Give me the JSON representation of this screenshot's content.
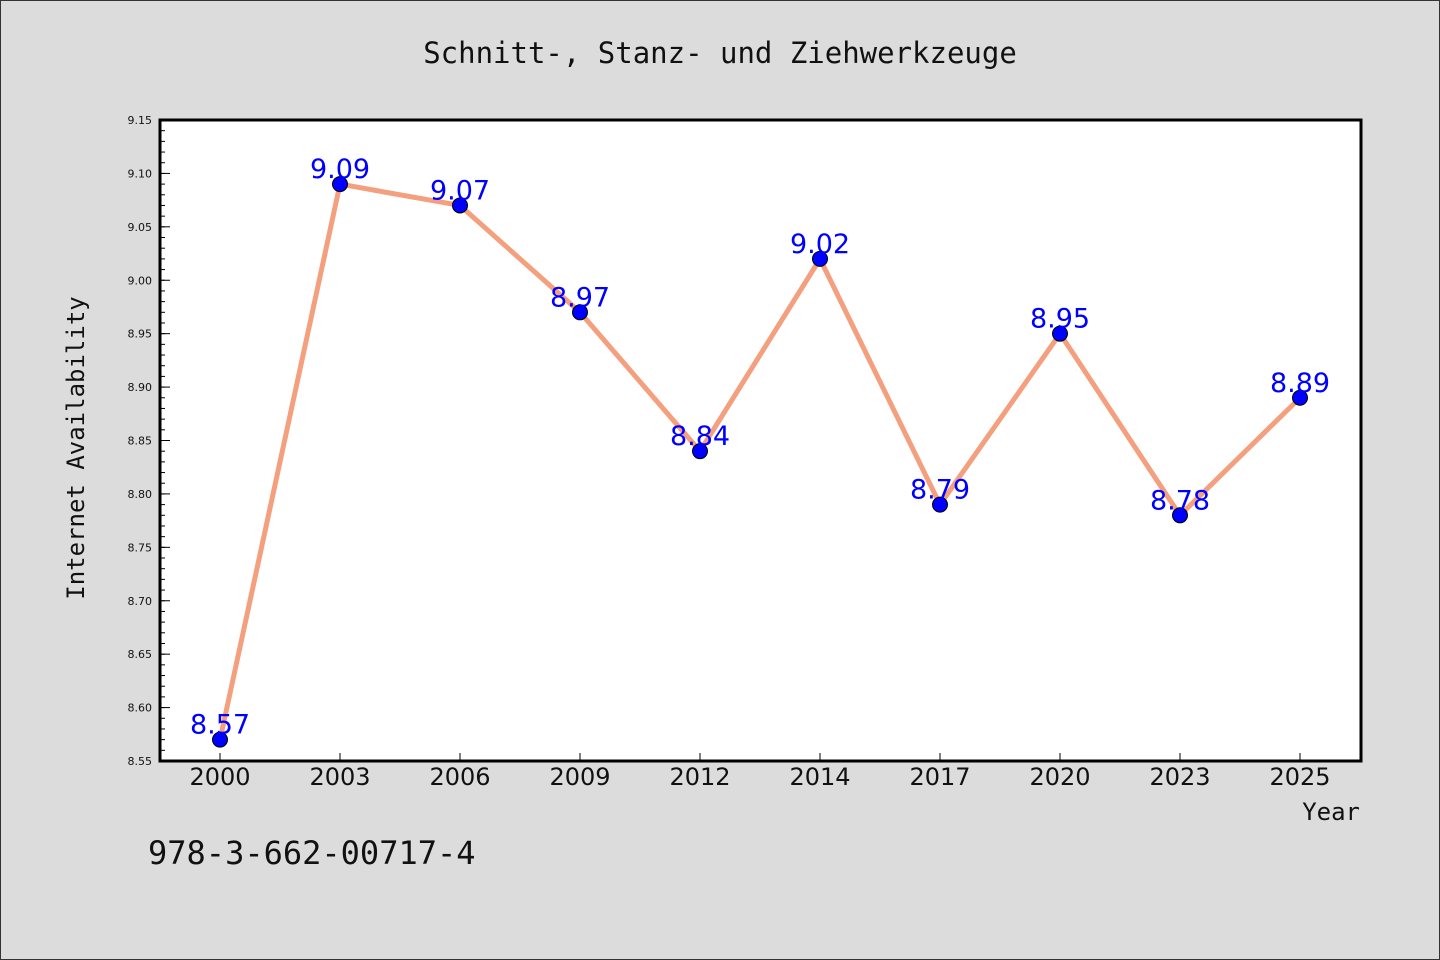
{
  "chart_data": {
    "type": "line",
    "title": "Schnitt-, Stanz- und Ziehwerkzeuge",
    "xlabel": "Year",
    "ylabel": "Internet Availability",
    "categories": [
      "2000",
      "2003",
      "2006",
      "2009",
      "2012",
      "2014",
      "2017",
      "2020",
      "2023",
      "2025"
    ],
    "series": [
      {
        "values": [
          8.57,
          9.09,
          9.07,
          8.97,
          8.84,
          9.02,
          8.79,
          8.95,
          8.78,
          8.89
        ],
        "data_labels": [
          "8.57",
          "9.09",
          "9.07",
          "8.97",
          "8.84",
          "9.02",
          "8.79",
          "8.95",
          "8.78",
          "8.89"
        ],
        "line_color": "#f4a07e",
        "marker_color": "#0000ff"
      }
    ],
    "ylim": [
      8.55,
      9.15
    ],
    "yticks": [
      "8.55",
      "8.60",
      "8.65",
      "8.70",
      "8.75",
      "8.80",
      "8.85",
      "8.90",
      "8.95",
      "9.00",
      "9.05",
      "9.10",
      "9.15"
    ],
    "grid": false,
    "legend": "none"
  },
  "footer": {
    "isbn": "978-3-662-00717-4"
  },
  "colors": {
    "background": "#dcdcdc",
    "plot_background": "#ffffff",
    "line": "#f4a07e",
    "marker": "#0000ff",
    "label": "#0000ff"
  }
}
